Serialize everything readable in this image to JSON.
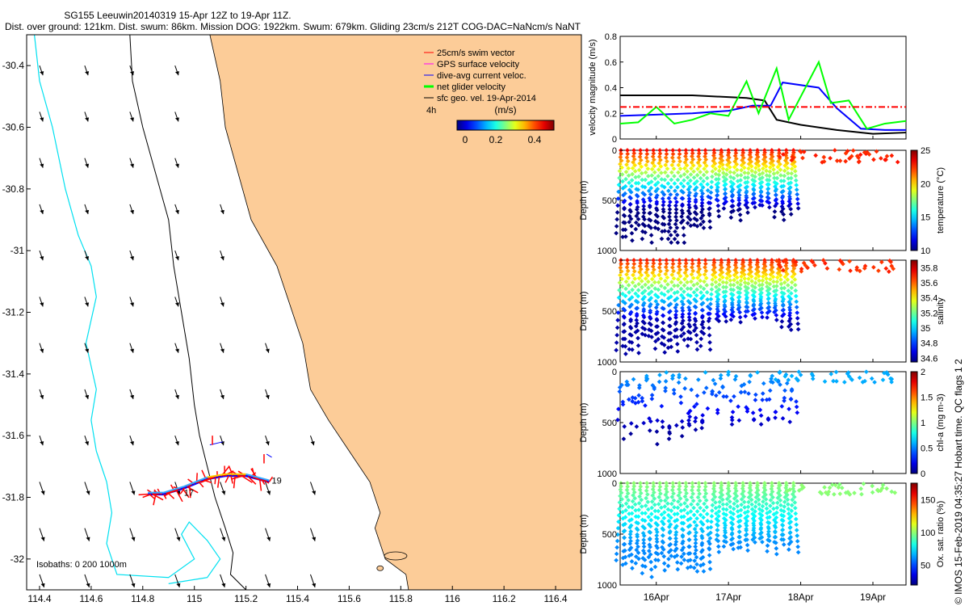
{
  "header": {
    "title": "SG155 Leeuwin20140319 15-Apr 12Z to 19-Apr 11Z.",
    "subtitle": "Dist. over ground: 121km. Dist. swum: 86km. Mission DOG: 1922km. Swum: 679km. Gliding 23cm/s 212T COG-DAC=NaNcm/s NaNT"
  },
  "credit": "© IMOS 15-Feb-2019 04:35:27 Hobart time. QC flags 1  2",
  "colors": {
    "land": "#fccc98",
    "coast_isobath_200": "#000000",
    "isobath_1000": "#00e0f0",
    "swim_vector": "#ff0000",
    "gps_surface": "#ff00ff",
    "dive_avg_current": "#0000ff",
    "net_glider": "#00ff00",
    "sfc_geo": "#000000",
    "mean_line": "#ff0000"
  },
  "chart_data": [
    {
      "type": "scatter",
      "name": "map",
      "xlim": [
        114.35,
        116.5
      ],
      "ylim": [
        -32.1,
        -30.3
      ],
      "xticks": [
        "114.4",
        "114.6",
        "114.8",
        "115",
        "115.2",
        "115.4",
        "115.6",
        "115.8",
        "116",
        "116.2",
        "116.4"
      ],
      "xtick_values": [
        114.4,
        114.6,
        114.8,
        115.0,
        115.2,
        115.4,
        115.6,
        115.8,
        116.0,
        116.2,
        116.4
      ],
      "yticks": [
        "-30.4",
        "-30.6",
        "-30.8",
        "-31",
        "-31.2",
        "-31.4",
        "-31.6",
        "-31.8",
        "-32"
      ],
      "ytick_values": [
        -30.4,
        -30.6,
        -30.8,
        -31.0,
        -31.2,
        -31.4,
        -31.6,
        -31.8,
        -32.0
      ],
      "legend": [
        {
          "label": "25cm/s swim vector",
          "color": "#ff0000"
        },
        {
          "label": "GPS surface velocity",
          "color": "#ff00ff"
        },
        {
          "label": "dive-avg current veloc.",
          "color": "#0000ff"
        },
        {
          "label": "net glider velocity",
          "color": "#00ff00"
        },
        {
          "label": "sfc geo. vel. 19-Apr-2014",
          "color": "#000000"
        }
      ],
      "legend_position": "top-right",
      "colorbar": {
        "label": "(m/s)",
        "ticks": [
          "0",
          "0.2",
          "0.4"
        ],
        "tick_values": [
          0,
          0.2,
          0.4
        ],
        "range": [
          0,
          0.5
        ],
        "side_label": "4h"
      },
      "isobath_note": "Isobaths: 0   200  1000m",
      "track_labels": [
        "19",
        "17"
      ],
      "track": {
        "lon": [
          114.82,
          114.88,
          114.96,
          115.05,
          115.12,
          115.2,
          115.29
        ],
        "lat": [
          -31.79,
          -31.79,
          -31.77,
          -31.74,
          -31.73,
          -31.73,
          -31.75
        ]
      },
      "coast_lon": [
        115.06,
        115.1,
        115.12,
        115.17,
        115.22,
        115.32,
        115.38,
        115.42,
        115.45,
        115.52,
        115.6,
        115.68,
        115.72,
        115.7,
        115.74,
        115.82,
        115.83,
        115.86
      ],
      "coast_lat": [
        -30.3,
        -30.45,
        -30.6,
        -30.75,
        -30.9,
        -31.05,
        -31.2,
        -31.3,
        -31.45,
        -31.55,
        -31.65,
        -31.75,
        -31.85,
        -31.9,
        -32.0,
        -32.05,
        -32.1,
        -32.1
      ]
    },
    {
      "type": "line",
      "name": "velocity",
      "ylabel": "velocity magnitude (m/s)",
      "ylim": [
        0,
        0.8
      ],
      "yticks": [
        "0",
        "0.2",
        "0.4",
        "0.6",
        "0.8"
      ],
      "ytick_values": [
        0,
        0.2,
        0.4,
        0.6,
        0.8
      ],
      "xlim": [
        "2014-04-15T12:00",
        "2014-04-19T11:00"
      ],
      "mean_swim": 0.25,
      "series": [
        {
          "color": "#000000",
          "x": [
            "2014-04-15T12:00",
            "2014-04-16T12:00",
            "2014-04-17T06:00",
            "2014-04-17T12:00",
            "2014-04-17T16:00",
            "2014-04-18T00:00",
            "2014-04-18T12:00",
            "2014-04-19T00:00",
            "2014-04-19T11:00"
          ],
          "values": [
            0.34,
            0.34,
            0.32,
            0.3,
            0.15,
            0.11,
            0.07,
            0.04,
            0.05
          ]
        },
        {
          "color": "#0000ff",
          "x": [
            "2014-04-15T12:00",
            "2014-04-16T00:00",
            "2014-04-16T12:00",
            "2014-04-17T00:00",
            "2014-04-17T08:00",
            "2014-04-17T14:00",
            "2014-04-17T18:00",
            "2014-04-18T06:00",
            "2014-04-18T12:00",
            "2014-04-18T20:00",
            "2014-04-19T04:00",
            "2014-04-19T11:00"
          ],
          "values": [
            0.18,
            0.19,
            0.2,
            0.22,
            0.26,
            0.26,
            0.44,
            0.4,
            0.24,
            0.08,
            0.07,
            0.07
          ]
        },
        {
          "color": "#00ff00",
          "x": [
            "2014-04-15T12:00",
            "2014-04-15T18:00",
            "2014-04-16T00:00",
            "2014-04-16T06:00",
            "2014-04-16T12:00",
            "2014-04-16T18:00",
            "2014-04-17T00:00",
            "2014-04-17T06:00",
            "2014-04-17T10:00",
            "2014-04-17T16:00",
            "2014-04-17T20:00",
            "2014-04-18T06:00",
            "2014-04-18T10:00",
            "2014-04-18T16:00",
            "2014-04-18T22:00",
            "2014-04-19T04:00",
            "2014-04-19T11:00"
          ],
          "values": [
            0.12,
            0.13,
            0.25,
            0.12,
            0.15,
            0.2,
            0.18,
            0.45,
            0.2,
            0.55,
            0.15,
            0.6,
            0.28,
            0.3,
            0.08,
            0.12,
            0.14
          ]
        }
      ]
    },
    {
      "type": "scatter",
      "name": "temperature",
      "ylabel": "Depth (m)",
      "clabel": "temperature (°C)",
      "ylim": [
        1000,
        0
      ],
      "yticks": [
        "0",
        "500",
        "1000"
      ],
      "clim": [
        10,
        25
      ],
      "cticks": [
        "10",
        "15",
        "20",
        "25"
      ],
      "surface_value": 23,
      "deep_value": 10,
      "xlim": [
        "2014-04-15T12:00",
        "2014-04-19T11:00"
      ]
    },
    {
      "type": "scatter",
      "name": "salinity",
      "ylabel": "Depth (m)",
      "clabel": "salinity",
      "ylim": [
        1000,
        0
      ],
      "yticks": [
        "0",
        "500",
        "1000"
      ],
      "clim": [
        34.55,
        35.9
      ],
      "cticks": [
        "34.6",
        "34.8",
        "35",
        "35.2",
        "35.4",
        "35.6",
        "35.8"
      ],
      "surface_value": 35.7,
      "deep_value": 34.6,
      "xlim": [
        "2014-04-15T12:00",
        "2014-04-19T11:00"
      ]
    },
    {
      "type": "scatter",
      "name": "chla",
      "ylabel": "Depth (m)",
      "clabel": "chl-a (mg m-3)",
      "ylim": [
        1000,
        0
      ],
      "yticks": [
        "0",
        "500",
        "1000"
      ],
      "clim": [
        0,
        2
      ],
      "cticks": [
        "0",
        "0.5",
        "1",
        "1.5",
        "2"
      ],
      "surface_value": 0.6,
      "deep_value": 0.05,
      "xlim": [
        "2014-04-15T12:00",
        "2014-04-19T11:00"
      ]
    },
    {
      "type": "scatter",
      "name": "oxygen",
      "ylabel": "Depth (m)",
      "clabel": "Ox. sat. ratio (%)",
      "ylim": [
        1000,
        0
      ],
      "yticks": [
        "0",
        "500",
        "1000"
      ],
      "clim": [
        20,
        175
      ],
      "cticks": [
        "50",
        "100",
        "150"
      ],
      "surface_value": 100,
      "deep_value": 60,
      "xlim": [
        "2014-04-15T12:00",
        "2014-04-19T11:00"
      ],
      "xticks": [
        "16Apr",
        "17Apr",
        "18Apr",
        "19Apr"
      ],
      "xtick_values": [
        "2014-04-16T00:00",
        "2014-04-17T00:00",
        "2014-04-18T00:00",
        "2014-04-19T00:00"
      ]
    }
  ]
}
